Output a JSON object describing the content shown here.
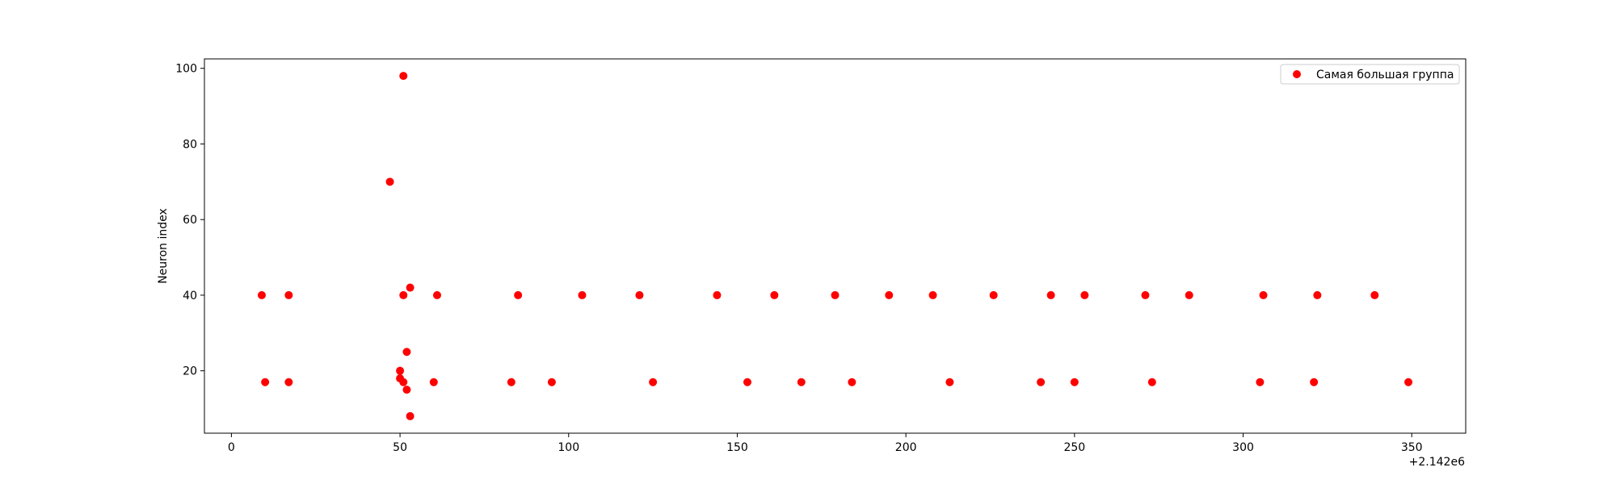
{
  "chart_data": {
    "type": "scatter",
    "title": "",
    "xlabel": "",
    "ylabel": "Neuron index",
    "x_offset_label": "+2.142e6",
    "xlim": [
      -8,
      366
    ],
    "ylim": [
      3.5,
      102.5
    ],
    "x_ticks": [
      0,
      50,
      100,
      150,
      200,
      250,
      300,
      350
    ],
    "y_ticks": [
      20,
      40,
      60,
      80,
      100
    ],
    "grid": false,
    "legend_position": "top-right",
    "series": [
      {
        "name": "Самая большая группа",
        "color": "#ff0000",
        "points": [
          {
            "x": 9,
            "y": 40
          },
          {
            "x": 10,
            "y": 17
          },
          {
            "x": 17,
            "y": 40
          },
          {
            "x": 17,
            "y": 17
          },
          {
            "x": 47,
            "y": 70
          },
          {
            "x": 50,
            "y": 20
          },
          {
            "x": 50,
            "y": 18
          },
          {
            "x": 51,
            "y": 98
          },
          {
            "x": 51,
            "y": 40
          },
          {
            "x": 51,
            "y": 17
          },
          {
            "x": 52,
            "y": 25
          },
          {
            "x": 52,
            "y": 15
          },
          {
            "x": 53,
            "y": 42
          },
          {
            "x": 53,
            "y": 8
          },
          {
            "x": 60,
            "y": 17
          },
          {
            "x": 61,
            "y": 40
          },
          {
            "x": 83,
            "y": 17
          },
          {
            "x": 85,
            "y": 40
          },
          {
            "x": 95,
            "y": 17
          },
          {
            "x": 104,
            "y": 40
          },
          {
            "x": 121,
            "y": 40
          },
          {
            "x": 125,
            "y": 17
          },
          {
            "x": 144,
            "y": 40
          },
          {
            "x": 153,
            "y": 17
          },
          {
            "x": 161,
            "y": 40
          },
          {
            "x": 169,
            "y": 17
          },
          {
            "x": 179,
            "y": 40
          },
          {
            "x": 184,
            "y": 17
          },
          {
            "x": 195,
            "y": 40
          },
          {
            "x": 208,
            "y": 40
          },
          {
            "x": 213,
            "y": 17
          },
          {
            "x": 226,
            "y": 40
          },
          {
            "x": 240,
            "y": 17
          },
          {
            "x": 243,
            "y": 40
          },
          {
            "x": 250,
            "y": 17
          },
          {
            "x": 253,
            "y": 40
          },
          {
            "x": 271,
            "y": 40
          },
          {
            "x": 273,
            "y": 17
          },
          {
            "x": 284,
            "y": 40
          },
          {
            "x": 305,
            "y": 17
          },
          {
            "x": 306,
            "y": 40
          },
          {
            "x": 321,
            "y": 17
          },
          {
            "x": 322,
            "y": 40
          },
          {
            "x": 339,
            "y": 40
          },
          {
            "x": 349,
            "y": 17
          }
        ]
      }
    ]
  }
}
